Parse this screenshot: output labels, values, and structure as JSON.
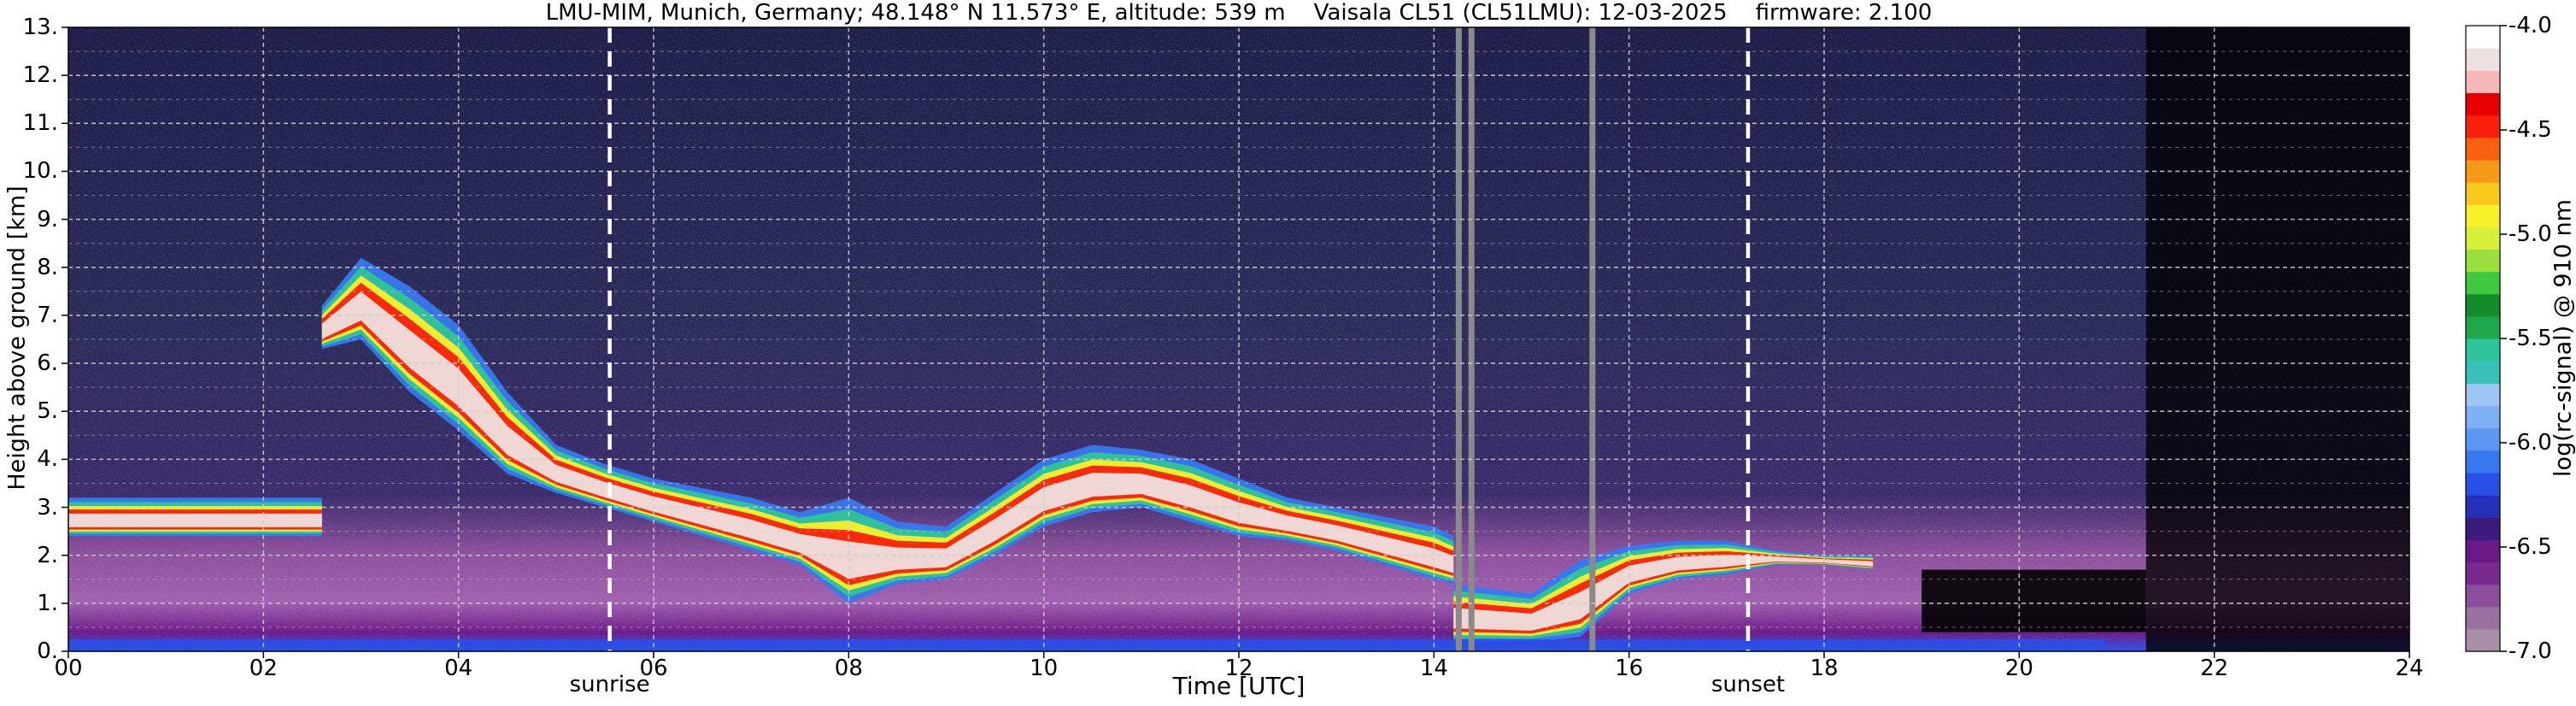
{
  "chart_data": {
    "type": "heatmap",
    "title": "LMU-MIM, Munich, Germany; 48.148° N 11.573° E, altitude: 539 m    Vaisala CL51 (CL51LMU): 12-03-2025    firmware: 2.100",
    "xlabel": "Time [UTC]",
    "ylabel": "Height above ground [km]",
    "xlim": [
      0,
      24
    ],
    "ylim": [
      0,
      13
    ],
    "x_ticks": [
      "00",
      "02",
      "04",
      "06",
      "08",
      "10",
      "12",
      "14",
      "16",
      "18",
      "20",
      "22",
      "24"
    ],
    "y_ticks": [
      "0.",
      "1.",
      "2.",
      "3.",
      "4.",
      "5.",
      "6.",
      "7.",
      "8.",
      "9.",
      "10.",
      "11.",
      "12.",
      "13."
    ],
    "grid": true,
    "colorbar": {
      "label": "log(rc-signal) @ 910 nm",
      "range": [
        -7.0,
        -4.0
      ],
      "ticks": [
        "-4.0",
        "-4.5",
        "-5.0",
        "-5.5",
        "-6.0",
        "-6.5",
        "-7.0"
      ],
      "colors": [
        "#a88ea8",
        "#9a72a0",
        "#8a4e9a",
        "#7a2a8e",
        "#6a1a86",
        "#3a1a7a",
        "#2430b8",
        "#2850e8",
        "#3878f0",
        "#5c96f0",
        "#7cb0f2",
        "#9ec6f4",
        "#36c0b8",
        "#30c49a",
        "#1ea84a",
        "#148c2a",
        "#40c840",
        "#9ae03c",
        "#d8f03a",
        "#f8f028",
        "#f8c81c",
        "#f89818",
        "#f86010",
        "#f82008",
        "#e80000",
        "#f8b8b8",
        "#ede0e0",
        "#ffffff"
      ]
    },
    "events": [
      {
        "label": "sunrise",
        "time": 5.55
      },
      {
        "label": "sunset",
        "time": 17.22
      }
    ],
    "missing_data_times": [
      14.25,
      14.38,
      15.62
    ],
    "layers": [
      {
        "name": "",
        "times": [
          0.0,
          2.6
        ],
        "base_km": [
          2.4,
          2.4
        ],
        "top_km": [
          3.2,
          3.2
        ]
      },
      {
        "name": "",
        "times": [
          2.6,
          3.0,
          3.5,
          4.0,
          4.5,
          5.0,
          5.5,
          6.0,
          6.5,
          7.0,
          7.5,
          8.0,
          8.5,
          9.0,
          9.5,
          10.0,
          10.5,
          11.0,
          11.5,
          12.0,
          12.5,
          13.0,
          13.5,
          14.0,
          14.2
        ],
        "base_km": [
          6.3,
          6.5,
          5.4,
          4.6,
          3.7,
          3.3,
          3.0,
          2.7,
          2.4,
          2.1,
          1.8,
          1.0,
          1.4,
          1.5,
          2.0,
          2.6,
          2.9,
          3.0,
          2.7,
          2.4,
          2.3,
          2.1,
          1.8,
          1.5,
          1.4
        ],
        "top_km": [
          7.2,
          8.2,
          7.6,
          6.8,
          5.4,
          4.3,
          3.9,
          3.6,
          3.4,
          3.2,
          2.9,
          3.2,
          2.7,
          2.6,
          3.3,
          4.0,
          4.3,
          4.2,
          4.0,
          3.6,
          3.2,
          3.0,
          2.8,
          2.6,
          2.4
        ]
      },
      {
        "name": "",
        "times": [
          14.2,
          15.0,
          15.5,
          16.0,
          16.5,
          17.0,
          17.5,
          18.0,
          18.5
        ],
        "base_km": [
          0.2,
          0.2,
          0.3,
          1.2,
          1.5,
          1.6,
          1.8,
          1.8,
          1.7
        ],
        "top_km": [
          1.4,
          1.2,
          1.9,
          2.2,
          2.3,
          2.3,
          2.1,
          2.0,
          2.0
        ]
      }
    ]
  }
}
